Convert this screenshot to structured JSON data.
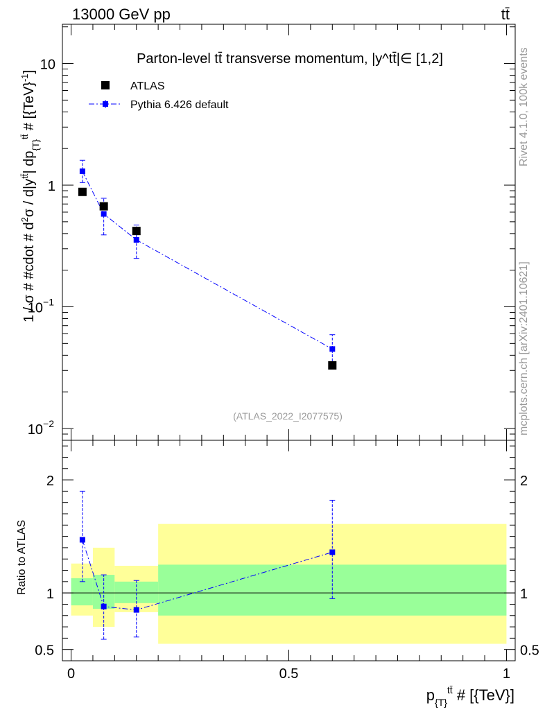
{
  "header": {
    "left": "13000 GeV pp",
    "right": "tt̄"
  },
  "side": {
    "rivet": "Rivet 4.1.0,  100k events",
    "mcplots": "mcplots.cern.ch [arXiv:2401.10621]"
  },
  "colors": {
    "data": "#000000",
    "mc": "#0000ff",
    "band_inner": "#99ff99",
    "band_outer": "#ffff99"
  },
  "chart_data": [
    {
      "type": "scatter",
      "title": "Parton-level tt̄ transverse momentum, |y^tt̄|∈ [1,2]",
      "ylabel": "1 / σ # #cdot # d²σ / d|y^tt̄| dp_{T}^tt̄ # [{TeV}⁻¹]",
      "xlabel": "p_{T}^tt̄ # [{TeV}]",
      "watermark": "(ATLAS_2022_I2077575)",
      "yscale": "log",
      "ylim": [
        0.008,
        21
      ],
      "xlim": [
        -0.02,
        1.02
      ],
      "yticks": [
        {
          "v": 10,
          "b": "10",
          "e": ""
        },
        {
          "v": 1,
          "b": "1",
          "e": ""
        },
        {
          "v": 0.1,
          "b": "10",
          "e": "−1"
        },
        {
          "v": 0.01,
          "b": "10",
          "e": "−2"
        }
      ],
      "legend": [
        {
          "label": "ATLAS",
          "marker": "square",
          "color": "#000000"
        },
        {
          "label": "Pythia 6.426 default",
          "marker": "square-line",
          "color": "#0000ff"
        }
      ],
      "series": [
        {
          "name": "ATLAS",
          "x": [
            0.026,
            0.075,
            0.15,
            0.6
          ],
          "y": [
            0.88,
            0.67,
            0.42,
            0.033
          ],
          "yerr_lo": [
            0.87,
            0.66,
            0.41,
            0.032
          ],
          "yerr_hi": [
            0.89,
            0.68,
            0.43,
            0.034
          ]
        },
        {
          "name": "Pythia 6.426 default",
          "x": [
            0.026,
            0.075,
            0.15,
            0.6
          ],
          "y": [
            1.3,
            0.58,
            0.355,
            0.045
          ],
          "yerr_lo": [
            1.05,
            0.39,
            0.25,
            0.033
          ],
          "yerr_hi": [
            1.6,
            0.78,
            0.47,
            0.059
          ]
        }
      ]
    },
    {
      "type": "scatter",
      "ylabel": "Ratio to ATLAS",
      "xlabel": "p_{T}^tt̄ # [{TeV}]",
      "ylim": [
        0.4,
        2.35
      ],
      "xlim": [
        -0.02,
        1.02
      ],
      "yticks": [
        {
          "v": 2,
          "label": "2"
        },
        {
          "v": 1,
          "label": "1"
        },
        {
          "v": 0.5,
          "label": "0.5"
        }
      ],
      "xticks": [
        {
          "v": 0,
          "label": "0"
        },
        {
          "v": 0.5,
          "label": "0.5"
        },
        {
          "v": 1,
          "label": "1"
        }
      ],
      "bands": [
        {
          "x0": 0.0,
          "x1": 0.05,
          "outer": [
            0.8,
            1.26
          ],
          "inner": [
            0.89,
            1.13
          ]
        },
        {
          "x0": 0.05,
          "x1": 0.1,
          "outer": [
            0.7,
            1.4
          ],
          "inner": [
            0.86,
            1.16
          ]
        },
        {
          "x0": 0.1,
          "x1": 0.2,
          "outer": [
            0.83,
            1.24
          ],
          "inner": [
            0.91,
            1.1
          ]
        },
        {
          "x0": 0.2,
          "x1": 1.0,
          "outer": [
            0.55,
            1.61
          ],
          "inner": [
            0.8,
            1.25
          ]
        }
      ],
      "series": [
        {
          "name": "Pythia 6.426 default",
          "x": [
            0.026,
            0.075,
            0.15,
            0.6
          ],
          "y": [
            1.47,
            0.88,
            0.85,
            1.36
          ],
          "yerr_lo": [
            1.1,
            0.59,
            0.61,
            0.95
          ],
          "yerr_hi": [
            1.9,
            1.16,
            1.11,
            1.82
          ]
        }
      ]
    }
  ]
}
